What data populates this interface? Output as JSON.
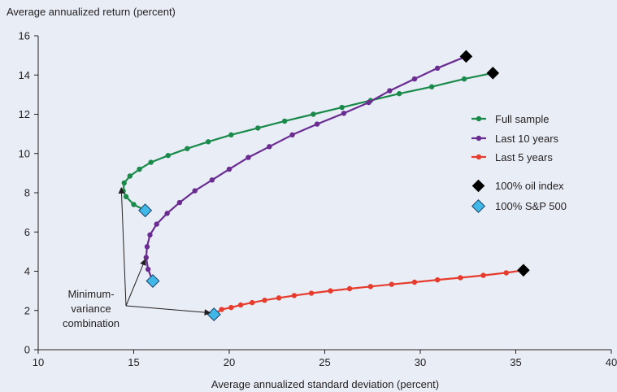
{
  "chart_data": {
    "type": "line",
    "ylabel": "Average annualized return (percent)",
    "xlabel": "Average annualized standard deviation (percent)",
    "xlim": [
      10,
      40
    ],
    "ylim": [
      0,
      16
    ],
    "xticks": [
      10,
      15,
      20,
      25,
      30,
      35,
      40
    ],
    "yticks": [
      0,
      2,
      4,
      6,
      8,
      10,
      12,
      14,
      16
    ],
    "grid": false,
    "legend_position": "right",
    "series": [
      {
        "name": "Full sample",
        "color": "#1a8a4a",
        "points": [
          [
            15.6,
            7.1
          ],
          [
            15.0,
            7.4
          ],
          [
            14.6,
            7.8
          ],
          [
            14.45,
            8.1
          ],
          [
            14.5,
            8.5
          ],
          [
            14.8,
            8.85
          ],
          [
            15.3,
            9.2
          ],
          [
            15.9,
            9.55
          ],
          [
            16.8,
            9.9
          ],
          [
            17.8,
            10.25
          ],
          [
            18.9,
            10.6
          ],
          [
            20.1,
            10.95
          ],
          [
            21.5,
            11.3
          ],
          [
            22.9,
            11.65
          ],
          [
            24.4,
            12.0
          ],
          [
            25.9,
            12.35
          ],
          [
            27.4,
            12.7
          ],
          [
            28.9,
            13.05
          ],
          [
            30.6,
            13.4
          ],
          [
            32.3,
            13.8
          ],
          [
            33.8,
            14.1
          ]
        ]
      },
      {
        "name": "Last 10 years",
        "color": "#6a2c91",
        "points": [
          [
            16.0,
            3.5
          ],
          [
            15.75,
            4.1
          ],
          [
            15.65,
            4.7
          ],
          [
            15.7,
            5.25
          ],
          [
            15.85,
            5.85
          ],
          [
            16.2,
            6.4
          ],
          [
            16.75,
            6.95
          ],
          [
            17.4,
            7.5
          ],
          [
            18.2,
            8.1
          ],
          [
            19.1,
            8.65
          ],
          [
            20.0,
            9.2
          ],
          [
            21.0,
            9.8
          ],
          [
            22.1,
            10.35
          ],
          [
            23.3,
            10.95
          ],
          [
            24.6,
            11.5
          ],
          [
            26.0,
            12.05
          ],
          [
            27.3,
            12.6
          ],
          [
            28.4,
            13.2
          ],
          [
            29.7,
            13.8
          ],
          [
            30.9,
            14.35
          ],
          [
            32.4,
            14.95
          ]
        ]
      },
      {
        "name": "Last 5 years",
        "color": "#e63c2e",
        "points": [
          [
            19.2,
            1.8
          ],
          [
            19.6,
            2.05
          ],
          [
            20.1,
            2.15
          ],
          [
            20.6,
            2.28
          ],
          [
            21.2,
            2.4
          ],
          [
            21.85,
            2.52
          ],
          [
            22.6,
            2.64
          ],
          [
            23.4,
            2.76
          ],
          [
            24.3,
            2.88
          ],
          [
            25.3,
            3.0
          ],
          [
            26.3,
            3.11
          ],
          [
            27.4,
            3.22
          ],
          [
            28.5,
            3.33
          ],
          [
            29.7,
            3.44
          ],
          [
            30.9,
            3.56
          ],
          [
            32.1,
            3.67
          ],
          [
            33.3,
            3.79
          ],
          [
            34.5,
            3.92
          ],
          [
            35.4,
            4.05
          ]
        ]
      }
    ],
    "markers": [
      {
        "name": "100% oil index",
        "color": "#000000",
        "points": [
          [
            32.4,
            14.95
          ],
          [
            33.8,
            14.1
          ],
          [
            35.4,
            4.05
          ]
        ]
      },
      {
        "name": "100% S&P 500",
        "color": "#3fb8e8",
        "points": [
          [
            15.6,
            7.1
          ],
          [
            16.0,
            3.5
          ],
          [
            19.2,
            1.8
          ]
        ]
      }
    ],
    "annotation": {
      "lines": [
        "Minimum-",
        "variance",
        "combination"
      ],
      "targets": [
        [
          14.35,
          8.25
        ],
        [
          15.6,
          4.6
        ],
        [
          19.0,
          1.88
        ]
      ]
    }
  }
}
